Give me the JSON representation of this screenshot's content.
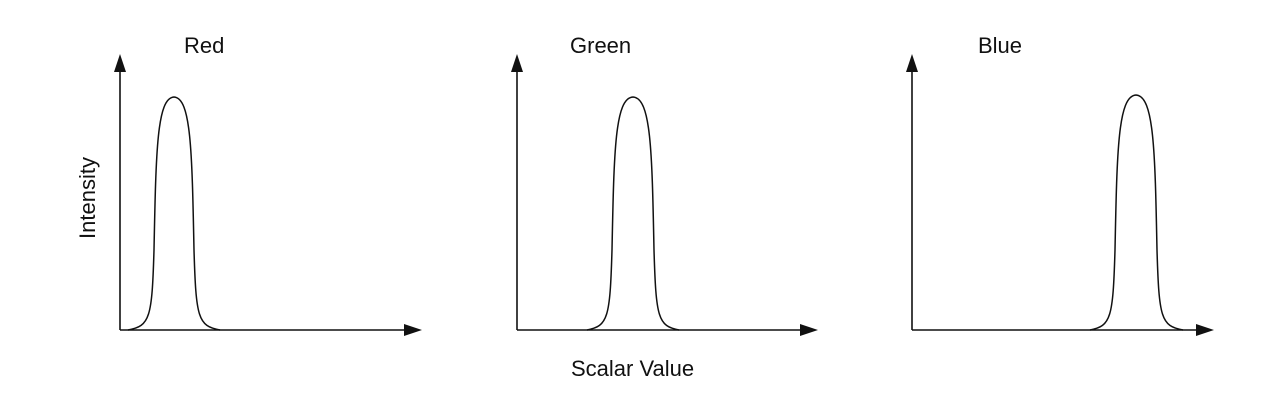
{
  "figure": {
    "panels": [
      {
        "title": "Red"
      },
      {
        "title": "Green"
      },
      {
        "title": "Blue"
      }
    ],
    "y_axis_label": "Intensity",
    "x_axis_label": "Scalar Value",
    "line_color": "#111111"
  }
}
